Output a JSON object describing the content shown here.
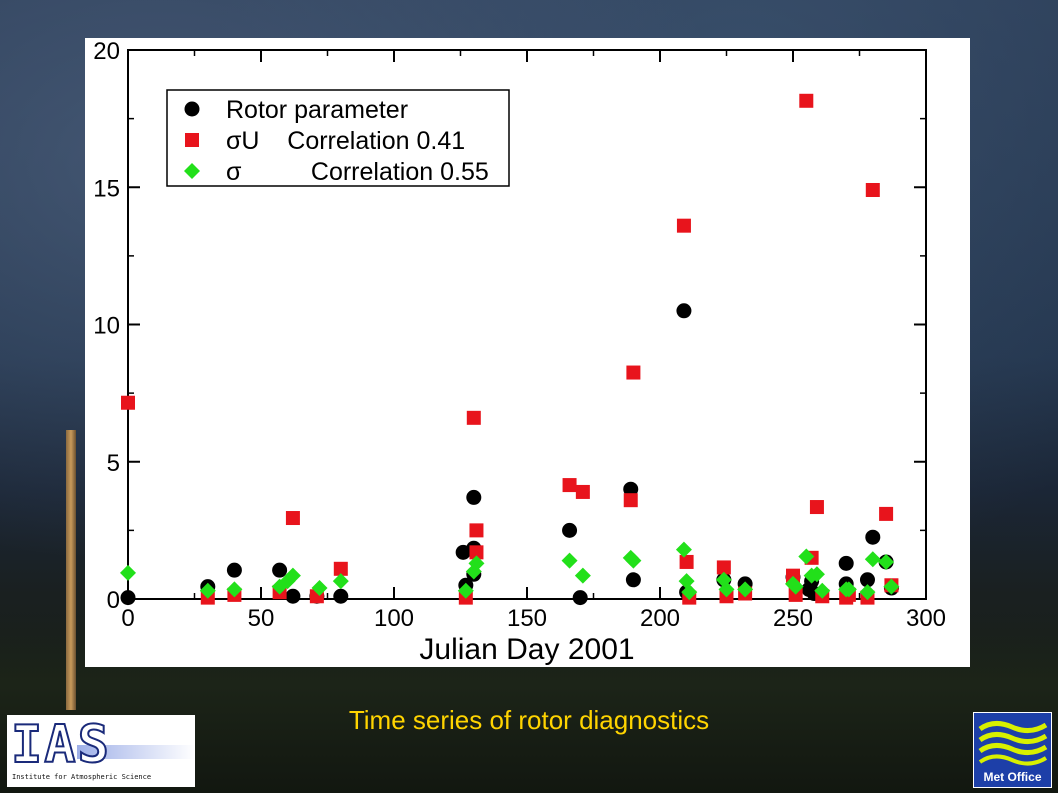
{
  "caption": "Time series of rotor diagnostics",
  "ias_logo": {
    "letters": "IAS",
    "subtitle": "Institute for Atmospheric Science",
    "icon": "ias-logo"
  },
  "met_logo": {
    "label": "Met Office",
    "icon": "met-office-waves-logo"
  },
  "colors": {
    "background": "#1e2d42",
    "caption": "#ffd400",
    "rotor": "#000000",
    "sigmaU": "#e8141c",
    "sigma": "#22e01a"
  },
  "chart_data": {
    "type": "scatter",
    "xlabel": "Julian Day 2001",
    "ylabel": "",
    "xlim": [
      0,
      300
    ],
    "ylim": [
      0,
      20
    ],
    "xticks": [
      0,
      50,
      100,
      150,
      200,
      250,
      300
    ],
    "yticks": [
      0,
      5,
      10,
      15,
      20
    ],
    "legend_position": "top-left",
    "grid": false,
    "series": [
      {
        "name": "Rotor parameter",
        "marker": "circle",
        "color": "#000000",
        "points": [
          [
            0,
            0.05
          ],
          [
            30,
            0.45
          ],
          [
            40,
            1.05
          ],
          [
            57,
            1.05
          ],
          [
            62,
            0.1
          ],
          [
            71,
            0.1
          ],
          [
            80,
            0.1
          ],
          [
            126,
            1.7
          ],
          [
            127,
            0.5
          ],
          [
            130,
            0.9
          ],
          [
            130,
            1.85
          ],
          [
            130,
            3.7
          ],
          [
            166,
            2.5
          ],
          [
            170,
            0.05
          ],
          [
            189,
            4.0
          ],
          [
            190,
            0.7
          ],
          [
            209,
            10.5
          ],
          [
            210,
            0.25
          ],
          [
            224,
            0.7
          ],
          [
            232,
            0.55
          ],
          [
            250,
            0.8
          ],
          [
            256,
            0.35
          ],
          [
            257,
            0.65
          ],
          [
            258,
            0.2
          ],
          [
            270,
            1.3
          ],
          [
            270,
            0.55
          ],
          [
            278,
            0.7
          ],
          [
            280,
            2.25
          ],
          [
            285,
            1.35
          ],
          [
            287,
            0.4
          ]
        ]
      },
      {
        "name": "σU    Correlation 0.41",
        "marker": "square",
        "color": "#e8141c",
        "points": [
          [
            0,
            7.15
          ],
          [
            30,
            0.05
          ],
          [
            40,
            0.15
          ],
          [
            57,
            0.25
          ],
          [
            62,
            2.95
          ],
          [
            71,
            0.1
          ],
          [
            80,
            1.1
          ],
          [
            127,
            0.05
          ],
          [
            130,
            6.6
          ],
          [
            131,
            2.5
          ],
          [
            131,
            1.7
          ],
          [
            166,
            4.15
          ],
          [
            171,
            3.9
          ],
          [
            189,
            3.6
          ],
          [
            190,
            8.25
          ],
          [
            209,
            13.6
          ],
          [
            210,
            1.35
          ],
          [
            211,
            0.05
          ],
          [
            224,
            1.15
          ],
          [
            225,
            0.1
          ],
          [
            232,
            0.2
          ],
          [
            250,
            0.85
          ],
          [
            251,
            0.15
          ],
          [
            255,
            18.15
          ],
          [
            257,
            1.5
          ],
          [
            259,
            3.35
          ],
          [
            261,
            0.1
          ],
          [
            270,
            0.05
          ],
          [
            271,
            0.15
          ],
          [
            278,
            0.05
          ],
          [
            280,
            14.9
          ],
          [
            285,
            3.1
          ],
          [
            287,
            0.5
          ]
        ]
      },
      {
        "name": "σ          Correlation 0.55",
        "marker": "diamond",
        "color": "#22e01a",
        "points": [
          [
            0,
            0.95
          ],
          [
            30,
            0.3
          ],
          [
            40,
            0.35
          ],
          [
            57,
            0.45
          ],
          [
            60,
            0.65
          ],
          [
            62,
            0.85
          ],
          [
            72,
            0.4
          ],
          [
            80,
            0.65
          ],
          [
            127,
            0.3
          ],
          [
            130,
            1.0
          ],
          [
            131,
            1.3
          ],
          [
            166,
            1.4
          ],
          [
            171,
            0.85
          ],
          [
            189,
            1.5
          ],
          [
            190,
            1.4
          ],
          [
            209,
            1.8
          ],
          [
            210,
            0.65
          ],
          [
            211,
            0.25
          ],
          [
            224,
            0.7
          ],
          [
            225,
            0.35
          ],
          [
            232,
            0.35
          ],
          [
            250,
            0.55
          ],
          [
            251,
            0.45
          ],
          [
            255,
            1.55
          ],
          [
            257,
            0.85
          ],
          [
            259,
            0.9
          ],
          [
            261,
            0.3
          ],
          [
            270,
            0.35
          ],
          [
            271,
            0.35
          ],
          [
            278,
            0.25
          ],
          [
            280,
            1.45
          ],
          [
            285,
            1.35
          ],
          [
            287,
            0.45
          ]
        ]
      }
    ]
  }
}
